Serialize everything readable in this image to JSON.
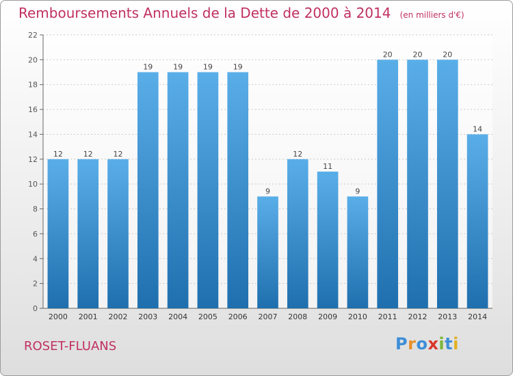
{
  "header": {
    "title": "Remboursements Annuels de la Dette de 2000 à 2014",
    "unit": "(en milliers d'€)"
  },
  "footer": {
    "commune": "ROSET-FLUANS",
    "logo": "Proxiti"
  },
  "colors": {
    "accent": "#c0305f",
    "bar_top": "#5aaee8",
    "bar_bottom": "#1f6fae"
  },
  "chart_data": {
    "type": "bar",
    "title": "Remboursements Annuels de la Dette de 2000 à 2014",
    "subtitle": "(en milliers d'€)",
    "categories": [
      "2000",
      "2001",
      "2002",
      "2003",
      "2004",
      "2005",
      "2006",
      "2007",
      "2008",
      "2009",
      "2010",
      "2011",
      "2012",
      "2013",
      "2014"
    ],
    "values": [
      12,
      12,
      12,
      19,
      19,
      19,
      19,
      9,
      12,
      11,
      9,
      20,
      20,
      20,
      14
    ],
    "ylim": [
      0,
      22
    ],
    "yticks": [
      0,
      2,
      4,
      6,
      8,
      10,
      12,
      14,
      16,
      18,
      20,
      22
    ],
    "grid": true,
    "data_labels": true
  }
}
